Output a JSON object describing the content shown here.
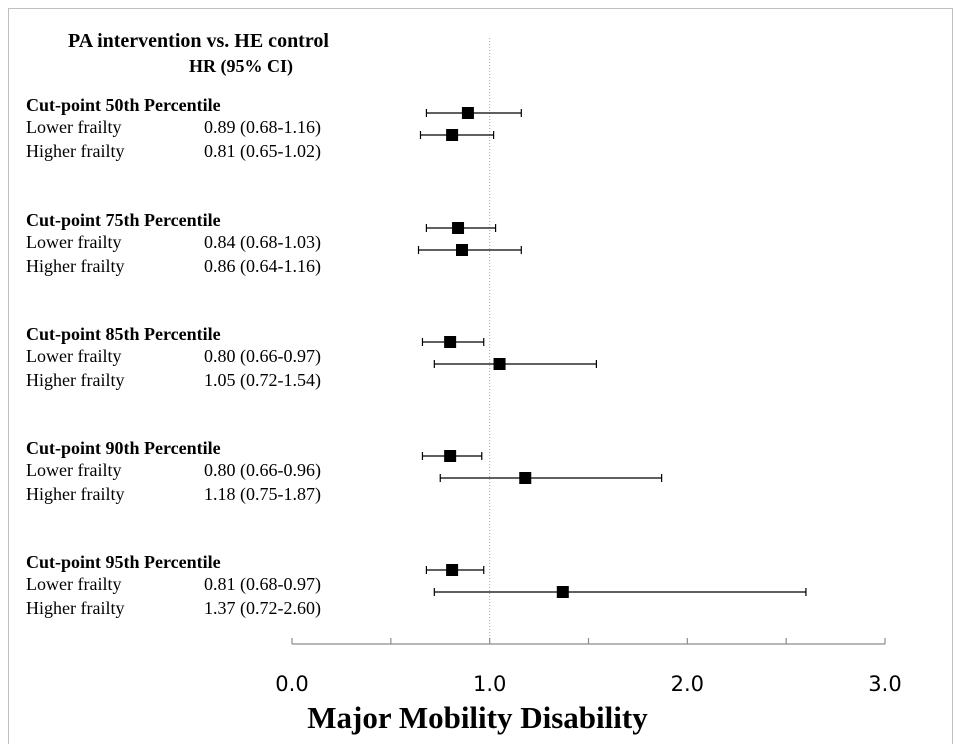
{
  "chart_data": {
    "type": "forest",
    "header_title": "PA intervention vs. HE control",
    "header_subtitle": "HR (95% CI)",
    "xlabel": "Major Mobility Disability",
    "xlim": [
      0.0,
      3.0
    ],
    "x_ticks": [
      "0.0",
      "1.0",
      "2.0",
      "3.0"
    ],
    "reference_line": 1.0,
    "groups": [
      {
        "label": "Cut-point 50th Percentile",
        "rows": [
          {
            "label": "Lower frailty",
            "hr_text": "0.89 (0.68-1.16)",
            "hr": 0.89,
            "lo": 0.68,
            "hi": 1.16
          },
          {
            "label": "Higher frailty",
            "hr_text": "0.81 (0.65-1.02)",
            "hr": 0.81,
            "lo": 0.65,
            "hi": 1.02
          }
        ]
      },
      {
        "label": "Cut-point 75th Percentile",
        "rows": [
          {
            "label": "Lower frailty",
            "hr_text": "0.84 (0.68-1.03)",
            "hr": 0.84,
            "lo": 0.68,
            "hi": 1.03
          },
          {
            "label": "Higher frailty",
            "hr_text": "0.86 (0.64-1.16)",
            "hr": 0.86,
            "lo": 0.64,
            "hi": 1.16
          }
        ]
      },
      {
        "label": "Cut-point 85th Percentile",
        "rows": [
          {
            "label": "Lower frailty",
            "hr_text": "0.80 (0.66-0.97)",
            "hr": 0.8,
            "lo": 0.66,
            "hi": 0.97
          },
          {
            "label": "Higher frailty",
            "hr_text": "1.05 (0.72-1.54)",
            "hr": 1.05,
            "lo": 0.72,
            "hi": 1.54
          }
        ]
      },
      {
        "label": "Cut-point 90th Percentile",
        "rows": [
          {
            "label": "Lower frailty",
            "hr_text": "0.80 (0.66-0.96)",
            "hr": 0.8,
            "lo": 0.66,
            "hi": 0.96
          },
          {
            "label": "Higher frailty",
            "hr_text": "1.18 (0.75-1.87)",
            "hr": 1.18,
            "lo": 0.75,
            "hi": 1.87
          }
        ]
      },
      {
        "label": "Cut-point 95th Percentile",
        "rows": [
          {
            "label": "Lower frailty",
            "hr_text": "0.81 (0.68-0.97)",
            "hr": 0.81,
            "lo": 0.68,
            "hi": 0.97
          },
          {
            "label": "Higher frailty",
            "hr_text": "1.37 (0.72-2.60)",
            "hr": 1.37,
            "lo": 0.72,
            "hi": 2.6
          }
        ]
      }
    ],
    "marker_color": "#000000",
    "reference_line_color": "#a6a6a6"
  }
}
